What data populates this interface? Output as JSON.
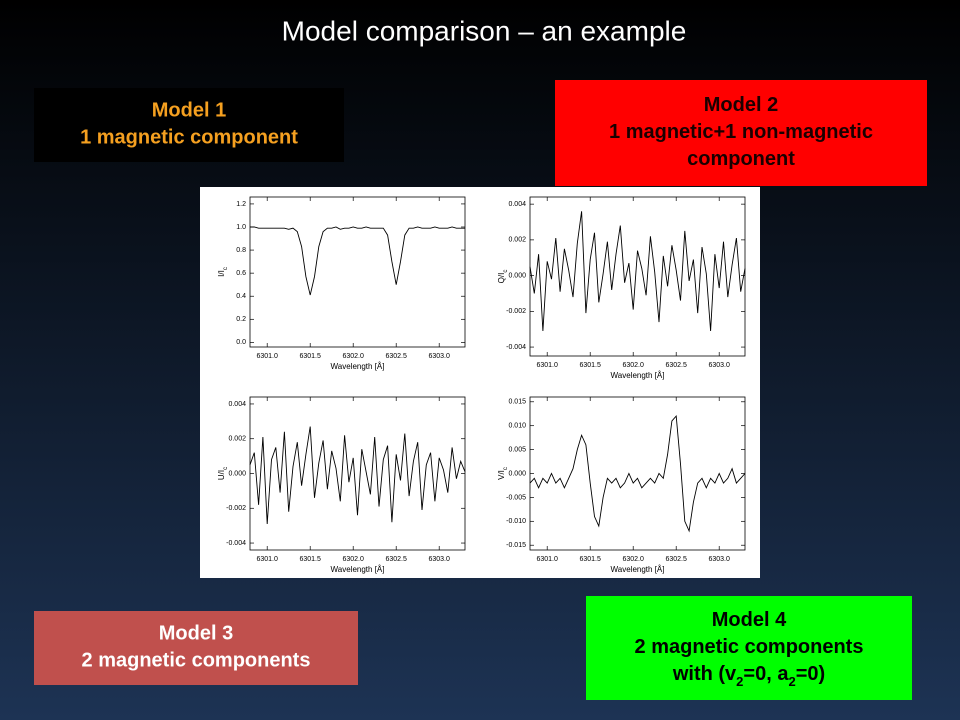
{
  "title": "Model comparison – an example",
  "boxes": [
    {
      "bg": "#000000",
      "color": "#f5a020",
      "lines": [
        [
          {
            "text": "Model 1"
          }
        ],
        [
          {
            "text": "1 magnetic component"
          }
        ]
      ]
    },
    {
      "bg": "#ff0000",
      "color": "#1a0000",
      "lines": [
        [
          {
            "text": "Model 2"
          }
        ],
        [
          {
            "text": "1 magnetic+1 non-magnetic"
          }
        ],
        [
          {
            "text": "component"
          }
        ]
      ]
    },
    {
      "bg": "#c0504d",
      "color": "#ffffff",
      "lines": [
        [
          {
            "text": "Model 3"
          }
        ],
        [
          {
            "text": "2 magnetic components"
          }
        ]
      ]
    },
    {
      "bg": "#00ff00",
      "color": "#000000",
      "lines": [
        [
          {
            "text": "Model 4"
          }
        ],
        [
          {
            "text": "2 magnetic components"
          }
        ],
        [
          {
            "text": "with (v"
          },
          {
            "text": "2",
            "sub": true
          },
          {
            "text": "=0, a"
          },
          {
            "text": "2",
            "sub": true
          },
          {
            "text": "=0)"
          }
        ]
      ]
    }
  ],
  "chart_data": [
    {
      "type": "line",
      "color": "#000000",
      "xlabel": "Wavelength [Å]",
      "ylabel": [
        {
          "text": "I/I"
        },
        {
          "text": "c",
          "sub": true
        }
      ],
      "xlim": [
        6300.8,
        6303.3
      ],
      "ylim": [
        -0.04,
        1.26
      ],
      "xticks": [
        {
          "value": 6301,
          "label": "6301.0"
        },
        6301.5,
        {
          "value": 6302,
          "label": "6302.0"
        },
        6302.5,
        {
          "value": 6303,
          "label": "6303.0"
        }
      ],
      "yticks": [
        {
          "value": 0,
          "label": "0.0"
        },
        0.2,
        0.4,
        0.6,
        0.8,
        {
          "value": 1,
          "label": "1.0"
        },
        1.2
      ],
      "x": [
        6300.8,
        6300.85,
        6300.9,
        6300.95,
        6301,
        6301.05,
        6301.1,
        6301.15,
        6301.2,
        6301.25,
        6301.3,
        6301.35,
        6301.4,
        6301.45,
        6301.5,
        6301.55,
        6301.6,
        6301.65,
        6301.7,
        6301.75,
        6301.8,
        6301.85,
        6301.9,
        6301.95,
        6302,
        6302.05,
        6302.1,
        6302.15,
        6302.2,
        6302.25,
        6302.3,
        6302.35,
        6302.4,
        6302.45,
        6302.5,
        6302.55,
        6302.6,
        6302.65,
        6302.7,
        6302.75,
        6302.8,
        6302.85,
        6302.9,
        6302.95,
        6303,
        6303.05,
        6303.1,
        6303.15,
        6303.2,
        6303.25,
        6303.3
      ],
      "values": [
        1.0,
        1.0,
        0.99,
        0.99,
        0.99,
        0.99,
        0.99,
        0.99,
        0.99,
        0.98,
        0.99,
        0.96,
        0.83,
        0.57,
        0.41,
        0.57,
        0.83,
        0.96,
        0.99,
        0.99,
        1.0,
        0.98,
        0.99,
        0.99,
        1.0,
        0.99,
        0.99,
        1.0,
        0.99,
        0.99,
        0.99,
        0.99,
        0.93,
        0.7,
        0.5,
        0.7,
        0.93,
        0.99,
        0.99,
        1.0,
        0.99,
        0.99,
        0.99,
        1.0,
        0.99,
        0.99,
        0.99,
        1.0,
        0.99,
        0.99,
        0.99
      ]
    },
    {
      "type": "line",
      "color": "#000000",
      "xlabel": "Wavelength [Å]",
      "ylabel": [
        {
          "text": "Q/I"
        },
        {
          "text": "c",
          "sub": true
        }
      ],
      "xlim": [
        6300.8,
        6303.3
      ],
      "ylim": [
        -0.0045,
        0.0044
      ],
      "xticks": [
        {
          "value": 6301,
          "label": "6301.0"
        },
        6301.5,
        {
          "value": 6302,
          "label": "6302.0"
        },
        6302.5,
        {
          "value": 6303,
          "label": "6303.0"
        }
      ],
      "yticks": [
        -0.004,
        -0.002,
        {
          "value": 0,
          "label": "0.000"
        },
        0.002,
        0.004
      ],
      "x": [
        6300.8,
        6300.85,
        6300.9,
        6300.95,
        6301,
        6301.05,
        6301.1,
        6301.15,
        6301.2,
        6301.25,
        6301.3,
        6301.35,
        6301.4,
        6301.45,
        6301.5,
        6301.55,
        6301.6,
        6301.65,
        6301.7,
        6301.75,
        6301.8,
        6301.85,
        6301.9,
        6301.95,
        6302,
        6302.05,
        6302.1,
        6302.15,
        6302.2,
        6302.25,
        6302.3,
        6302.35,
        6302.4,
        6302.45,
        6302.5,
        6302.55,
        6302.6,
        6302.65,
        6302.7,
        6302.75,
        6302.8,
        6302.85,
        6302.9,
        6302.95,
        6303,
        6303.05,
        6303.1,
        6303.15,
        6303.2,
        6303.25,
        6303.3
      ],
      "values": [
        0.0005,
        -0.001,
        0.0012,
        -0.0031,
        0.0008,
        -0.0002,
        0.0021,
        -0.0009,
        0.0015,
        0.0003,
        -0.0012,
        0.0018,
        0.0036,
        -0.0021,
        0.0009,
        0.0024,
        -0.0015,
        0.0001,
        0.0019,
        -0.0008,
        0.0012,
        0.0028,
        -0.0004,
        0.0007,
        -0.0019,
        0.0014,
        0.0004,
        -0.0011,
        0.0022,
        0.0002,
        -0.0026,
        0.0011,
        -0.0006,
        0.0017,
        0.0003,
        -0.0014,
        0.0025,
        -0.0003,
        0.0009,
        -0.0021,
        0.0016,
        0.0001,
        -0.0031,
        0.0012,
        -0.0007,
        0.0019,
        -0.0012,
        0.0006,
        0.0021,
        -0.0009,
        0.0004
      ]
    },
    {
      "type": "line",
      "color": "#000000",
      "xlabel": "Wavelength [Å]",
      "ylabel": [
        {
          "text": "U/I"
        },
        {
          "text": "c",
          "sub": true
        }
      ],
      "xlim": [
        6300.8,
        6303.3
      ],
      "ylim": [
        -0.0044,
        0.0044
      ],
      "xticks": [
        {
          "value": 6301,
          "label": "6301.0"
        },
        6301.5,
        {
          "value": 6302,
          "label": "6302.0"
        },
        6302.5,
        {
          "value": 6303,
          "label": "6303.0"
        }
      ],
      "yticks": [
        -0.004,
        -0.002,
        {
          "value": 0,
          "label": "0.000"
        },
        0.002,
        0.004
      ],
      "x": [
        6300.8,
        6300.85,
        6300.9,
        6300.95,
        6301,
        6301.05,
        6301.1,
        6301.15,
        6301.2,
        6301.25,
        6301.3,
        6301.35,
        6301.4,
        6301.45,
        6301.5,
        6301.55,
        6301.6,
        6301.65,
        6301.7,
        6301.75,
        6301.8,
        6301.85,
        6301.9,
        6301.95,
        6302,
        6302.05,
        6302.1,
        6302.15,
        6302.2,
        6302.25,
        6302.3,
        6302.35,
        6302.4,
        6302.45,
        6302.5,
        6302.55,
        6302.6,
        6302.65,
        6302.7,
        6302.75,
        6302.8,
        6302.85,
        6302.9,
        6302.95,
        6303,
        6303.05,
        6303.1,
        6303.15,
        6303.2,
        6303.25,
        6303.3
      ],
      "values": [
        0.0005,
        0.0012,
        -0.0018,
        0.0021,
        -0.0029,
        0.0008,
        0.0015,
        -0.0011,
        0.0024,
        -0.0022,
        0.0004,
        0.0018,
        -0.0007,
        0.0011,
        0.0027,
        -0.0014,
        0.0006,
        0.0019,
        -0.0009,
        0.0013,
        0.0003,
        -0.0016,
        0.0022,
        -0.0005,
        0.0009,
        -0.0024,
        0.0014,
        0.0001,
        -0.0012,
        0.0021,
        -0.0019,
        0.0008,
        0.0016,
        -0.0028,
        0.0011,
        -0.0004,
        0.0023,
        -0.0013,
        0.0007,
        0.0018,
        -0.0021,
        0.0005,
        0.0012,
        -0.0016,
        0.0009,
        0.0002,
        -0.0011,
        0.0015,
        -0.0003,
        0.0007,
        0.0001
      ]
    },
    {
      "type": "line",
      "color": "#000000",
      "xlabel": "Wavelength [Å]",
      "ylabel": [
        {
          "text": "V/I"
        },
        {
          "text": "c",
          "sub": true
        }
      ],
      "xlim": [
        6300.8,
        6303.3
      ],
      "ylim": [
        -0.016,
        0.016
      ],
      "xticks": [
        {
          "value": 6301,
          "label": "6301.0"
        },
        6301.5,
        {
          "value": 6302,
          "label": "6302.0"
        },
        6302.5,
        {
          "value": 6303,
          "label": "6303.0"
        }
      ],
      "yticks": [
        -0.015,
        {
          "value": -0.01,
          "label": "-0.010"
        },
        -0.005,
        {
          "value": 0,
          "label": "0.000"
        },
        0.005,
        {
          "value": 0.01,
          "label": "0.010"
        },
        0.015
      ],
      "x": [
        6300.8,
        6300.85,
        6300.9,
        6300.95,
        6301,
        6301.05,
        6301.1,
        6301.15,
        6301.2,
        6301.25,
        6301.3,
        6301.35,
        6301.4,
        6301.45,
        6301.5,
        6301.55,
        6301.6,
        6301.65,
        6301.7,
        6301.75,
        6301.8,
        6301.85,
        6301.9,
        6301.95,
        6302,
        6302.05,
        6302.1,
        6302.15,
        6302.2,
        6302.25,
        6302.3,
        6302.35,
        6302.4,
        6302.45,
        6302.5,
        6302.55,
        6302.6,
        6302.65,
        6302.7,
        6302.75,
        6302.8,
        6302.85,
        6302.9,
        6302.95,
        6303,
        6303.05,
        6303.1,
        6303.15,
        6303.2,
        6303.25,
        6303.3
      ],
      "values": [
        -0.002,
        -0.001,
        -0.003,
        -0.001,
        -0.002,
        0.0,
        -0.002,
        -0.001,
        -0.003,
        -0.001,
        0.001,
        0.005,
        0.008,
        0.006,
        -0.002,
        -0.009,
        -0.011,
        -0.005,
        -0.001,
        -0.002,
        -0.001,
        -0.003,
        -0.002,
        0.0,
        -0.002,
        -0.001,
        -0.003,
        -0.002,
        -0.001,
        -0.002,
        0.0,
        -0.001,
        0.004,
        0.011,
        0.012,
        0.002,
        -0.01,
        -0.012,
        -0.006,
        -0.002,
        -0.001,
        -0.003,
        -0.001,
        -0.002,
        0.0,
        -0.002,
        -0.001,
        0.001,
        -0.002,
        -0.001,
        0.0
      ]
    }
  ]
}
